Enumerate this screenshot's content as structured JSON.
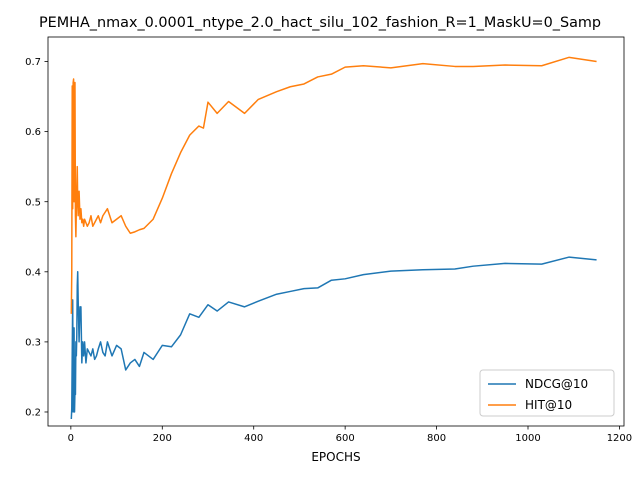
{
  "chart_data": {
    "type": "line",
    "title": "PEMHA_nmax_0.0001_ntype_2.0_hact_silu_102_fashion_R=1_MaskU=0_Samp",
    "xlabel": "EPOCHS",
    "ylabel": "",
    "xlim": [
      -50,
      1210
    ],
    "ylim": [
      0.18,
      0.735
    ],
    "xticks": [
      0,
      200,
      400,
      600,
      800,
      1000,
      1200
    ],
    "yticks": [
      0.2,
      0.3,
      0.4,
      0.5,
      0.6,
      0.7
    ],
    "xtick_labels": [
      "0",
      "200",
      "400",
      "600",
      "800",
      "1000",
      "1200"
    ],
    "ytick_labels": [
      "0.2",
      "0.3",
      "0.4",
      "0.5",
      "0.6",
      "0.7"
    ],
    "legend_position": "lower-right",
    "grid": false,
    "series": [
      {
        "name": "NDCG@10",
        "color": "#1f77b4",
        "x": [
          1,
          2,
          3,
          4,
          5,
          6,
          7,
          8,
          9,
          10,
          11,
          12,
          13,
          14,
          15,
          16,
          18,
          20,
          22,
          24,
          26,
          28,
          30,
          33,
          36,
          40,
          44,
          48,
          52,
          56,
          60,
          65,
          70,
          75,
          80,
          90,
          100,
          110,
          120,
          130,
          140,
          150,
          160,
          180,
          200,
          220,
          240,
          260,
          280,
          300,
          320,
          345,
          380,
          410,
          450,
          480,
          510,
          540,
          570,
          600,
          640,
          700,
          770,
          840,
          880,
          950,
          1030,
          1090,
          1150
        ],
        "y": [
          0.19,
          0.205,
          0.285,
          0.36,
          0.2,
          0.28,
          0.32,
          0.2,
          0.23,
          0.225,
          0.3,
          0.28,
          0.31,
          0.38,
          0.4,
          0.36,
          0.3,
          0.35,
          0.35,
          0.27,
          0.3,
          0.28,
          0.3,
          0.27,
          0.29,
          0.285,
          0.28,
          0.29,
          0.275,
          0.28,
          0.29,
          0.3,
          0.285,
          0.28,
          0.3,
          0.28,
          0.295,
          0.29,
          0.26,
          0.27,
          0.275,
          0.265,
          0.285,
          0.275,
          0.295,
          0.293,
          0.31,
          0.34,
          0.335,
          0.353,
          0.344,
          0.357,
          0.35,
          0.358,
          0.368,
          0.372,
          0.376,
          0.377,
          0.388,
          0.39,
          0.396,
          0.401,
          0.403,
          0.404,
          0.408,
          0.412,
          0.411,
          0.421,
          0.417
        ]
      },
      {
        "name": "HIT@10",
        "color": "#ff7f0e",
        "x": [
          1,
          2,
          3,
          4,
          5,
          6,
          7,
          8,
          9,
          10,
          11,
          12,
          13,
          14,
          15,
          16,
          18,
          20,
          22,
          24,
          26,
          28,
          30,
          33,
          36,
          40,
          44,
          48,
          52,
          56,
          60,
          65,
          70,
          75,
          80,
          90,
          100,
          110,
          120,
          130,
          140,
          150,
          160,
          180,
          200,
          220,
          240,
          260,
          280,
          290,
          300,
          320,
          345,
          380,
          410,
          450,
          480,
          510,
          540,
          570,
          600,
          640,
          700,
          770,
          840,
          880,
          950,
          1030,
          1090,
          1150
        ],
        "y": [
          0.34,
          0.4,
          0.665,
          0.49,
          0.67,
          0.675,
          0.5,
          0.6,
          0.67,
          0.48,
          0.45,
          0.49,
          0.52,
          0.55,
          0.5,
          0.48,
          0.515,
          0.475,
          0.49,
          0.47,
          0.475,
          0.465,
          0.475,
          0.47,
          0.465,
          0.47,
          0.48,
          0.465,
          0.47,
          0.475,
          0.48,
          0.47,
          0.48,
          0.485,
          0.49,
          0.47,
          0.475,
          0.48,
          0.465,
          0.455,
          0.457,
          0.46,
          0.462,
          0.475,
          0.505,
          0.54,
          0.57,
          0.595,
          0.608,
          0.605,
          0.642,
          0.626,
          0.643,
          0.626,
          0.646,
          0.657,
          0.664,
          0.668,
          0.678,
          0.682,
          0.692,
          0.694,
          0.691,
          0.697,
          0.693,
          0.693,
          0.695,
          0.694,
          0.706,
          0.7
        ]
      }
    ]
  }
}
